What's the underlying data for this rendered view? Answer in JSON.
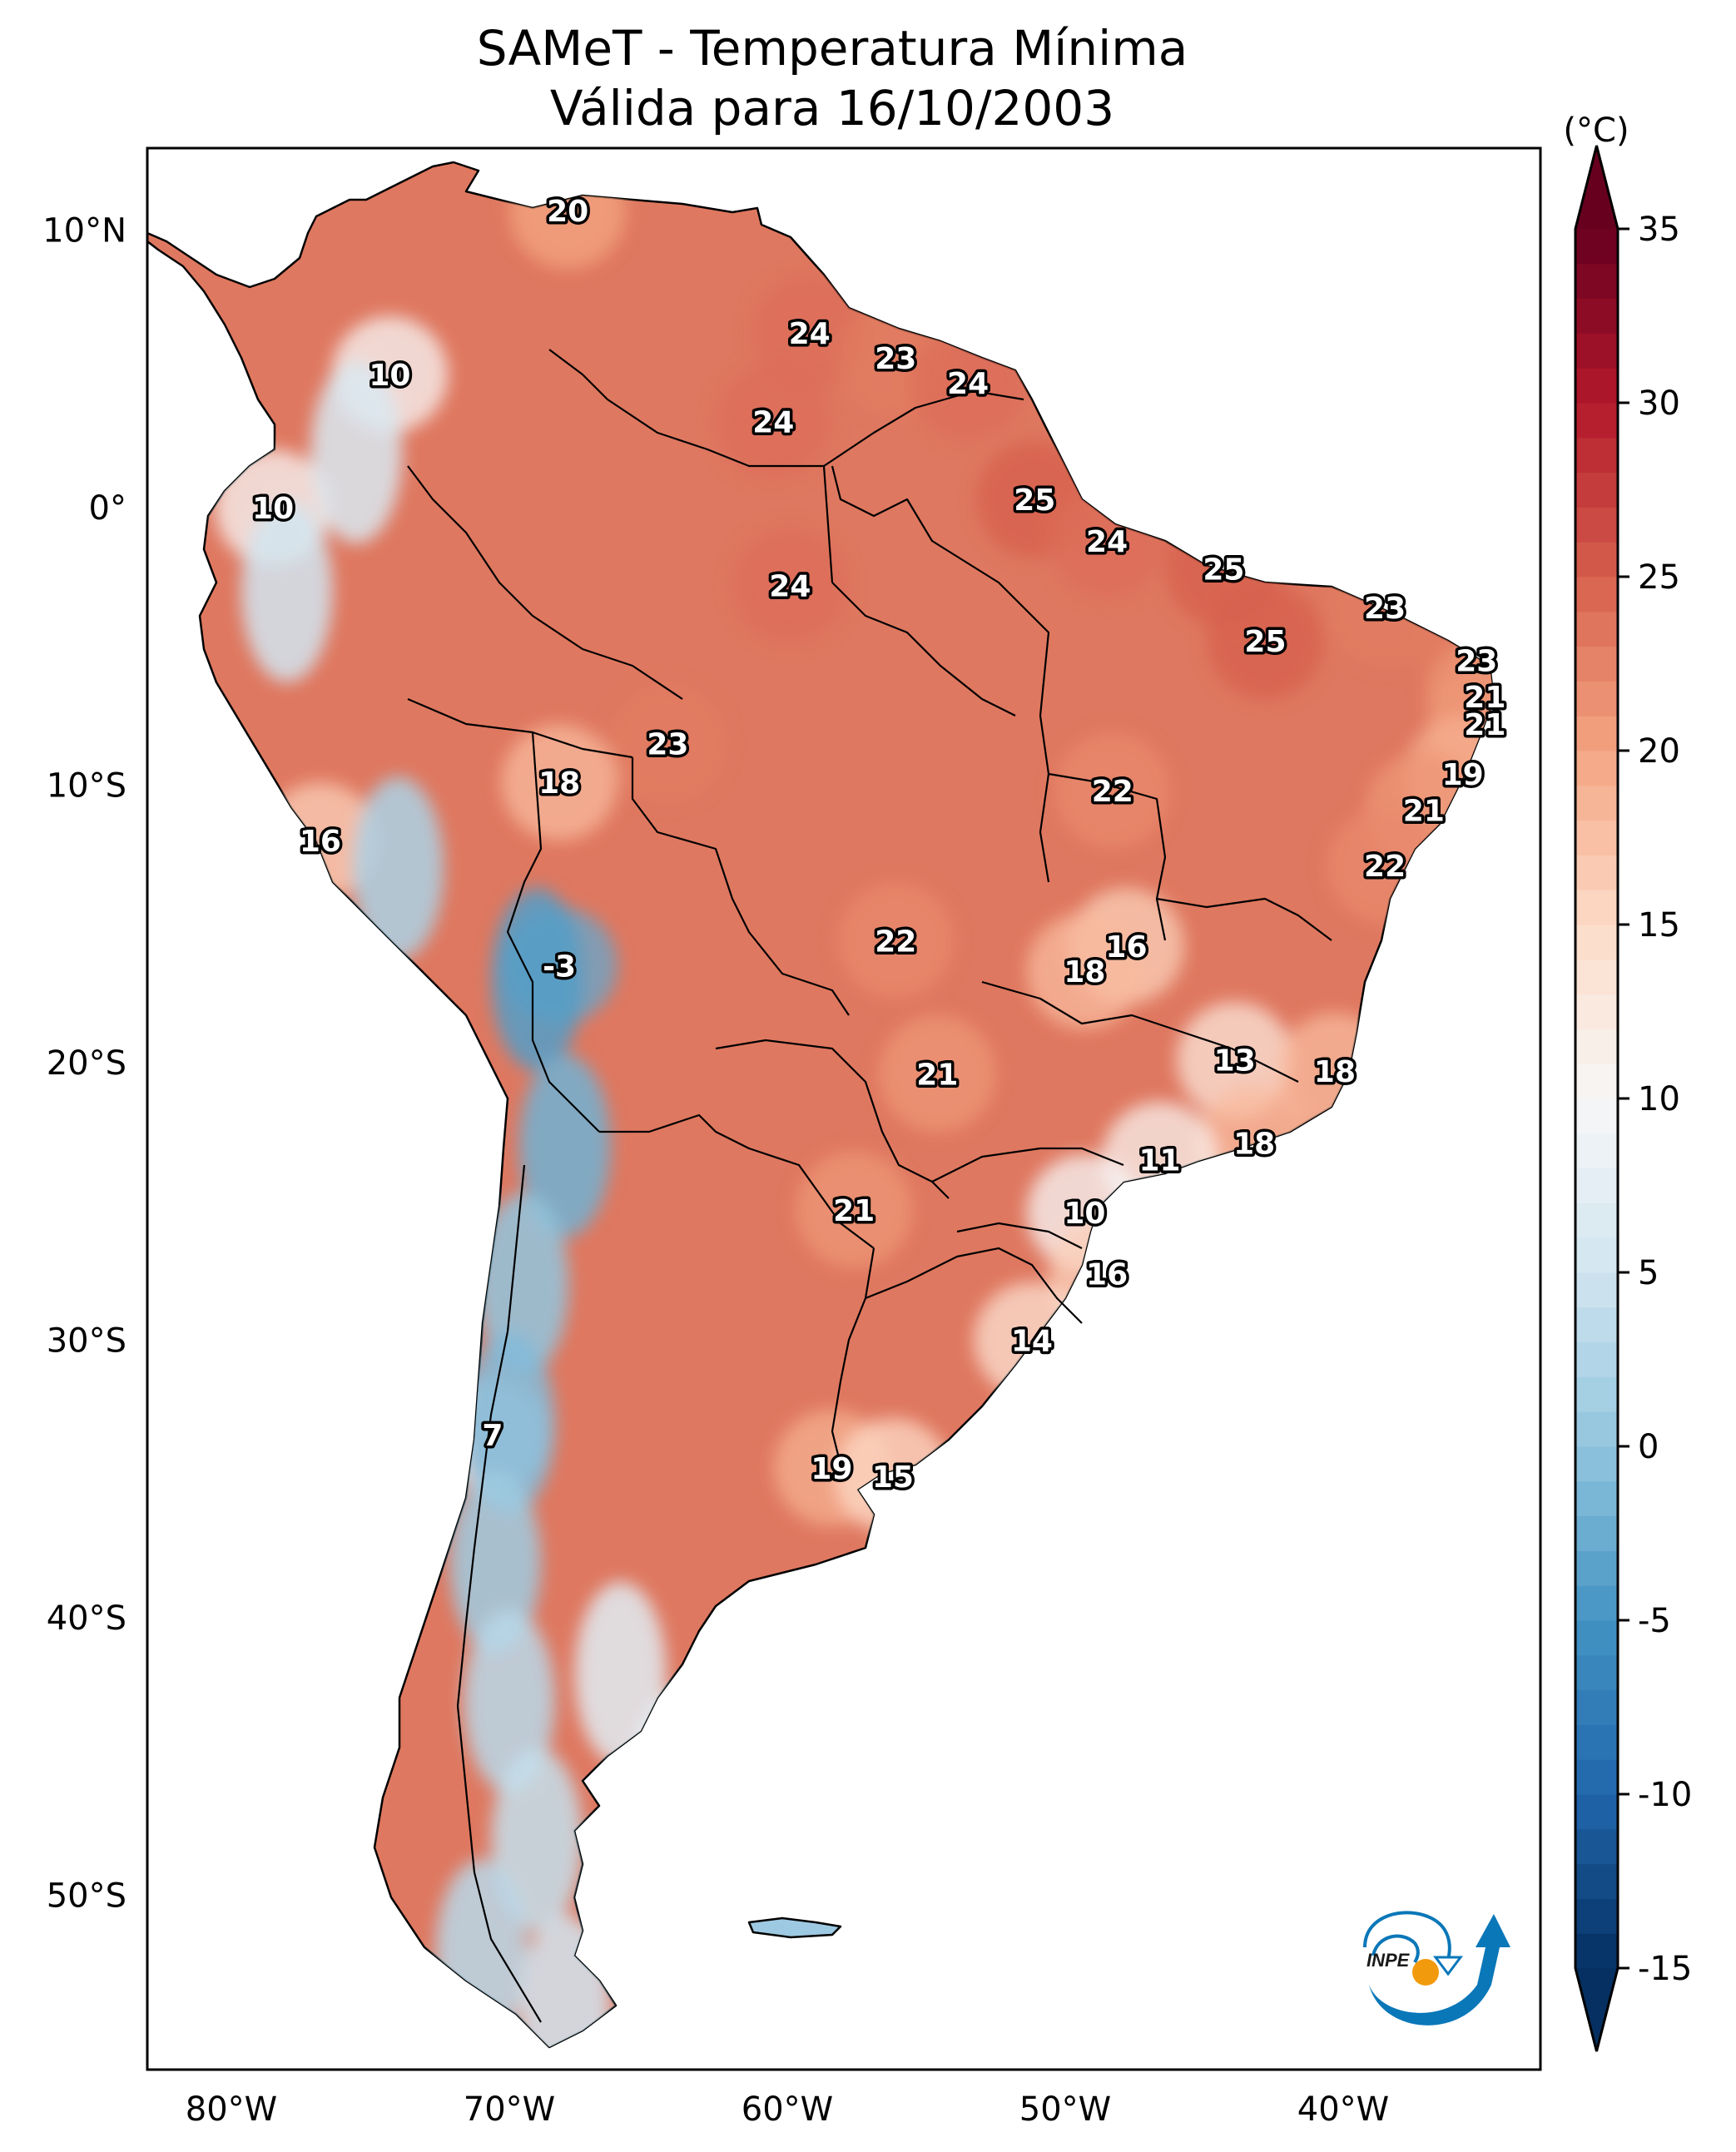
{
  "chart_data": {
    "type": "heatmap",
    "title": "SAMeT - Temperatura Mínima",
    "subtitle": "Válida para 16/10/2003",
    "projection": "PlateCarree",
    "extent_lon": [
      -83,
      -33
    ],
    "extent_lat": [
      -56,
      13
    ],
    "xticks": [
      {
        "value": -80,
        "label": "80°W"
      },
      {
        "value": -70,
        "label": "70°W"
      },
      {
        "value": -60,
        "label": "60°W"
      },
      {
        "value": -50,
        "label": "50°W"
      },
      {
        "value": -40,
        "label": "40°W"
      }
    ],
    "yticks": [
      {
        "value": 10,
        "label": "10°N"
      },
      {
        "value": 0,
        "label": "0°"
      },
      {
        "value": -10,
        "label": "10°S"
      },
      {
        "value": -20,
        "label": "20°S"
      },
      {
        "value": -30,
        "label": "30°S"
      },
      {
        "value": -40,
        "label": "40°S"
      },
      {
        "value": -50,
        "label": "50°S"
      }
    ],
    "colorbar": {
      "label": "(°C)",
      "range": [
        -15,
        35
      ],
      "extend": "both",
      "colormap": "RdBu_r",
      "ticks": [
        {
          "value": 35,
          "label": "35"
        },
        {
          "value": 30,
          "label": "30"
        },
        {
          "value": 25,
          "label": "25"
        },
        {
          "value": 20,
          "label": "20"
        },
        {
          "value": 15,
          "label": "15"
        },
        {
          "value": 10,
          "label": "10"
        },
        {
          "value": 5,
          "label": "5"
        },
        {
          "value": 0,
          "label": "0"
        },
        {
          "value": -5,
          "label": "-5"
        },
        {
          "value": -10,
          "label": "-10"
        },
        {
          "value": -15,
          "label": "-15"
        }
      ],
      "stops": [
        {
          "value": -15,
          "color": "#053061"
        },
        {
          "value": -10,
          "color": "#2166ac"
        },
        {
          "value": -5,
          "color": "#4393c3"
        },
        {
          "value": 0,
          "color": "#92c5de"
        },
        {
          "value": 5,
          "color": "#d1e5f0"
        },
        {
          "value": 10,
          "color": "#f7f7f7"
        },
        {
          "value": 15,
          "color": "#fddbc7"
        },
        {
          "value": 20,
          "color": "#f4a582"
        },
        {
          "value": 25,
          "color": "#d6604d"
        },
        {
          "value": 30,
          "color": "#b2182b"
        },
        {
          "value": 35,
          "color": "#67001f"
        }
      ]
    },
    "station_values": [
      {
        "lon": -67.9,
        "lat": 10.7,
        "value": 20
      },
      {
        "lon": -59.2,
        "lat": 6.3,
        "value": 24
      },
      {
        "lon": -56.1,
        "lat": 5.4,
        "value": 23
      },
      {
        "lon": -53.5,
        "lat": 4.5,
        "value": 24
      },
      {
        "lon": -74.3,
        "lat": 4.8,
        "value": 10
      },
      {
        "lon": -60.5,
        "lat": 3.1,
        "value": 24
      },
      {
        "lon": -78.5,
        "lat": 0.0,
        "value": 10
      },
      {
        "lon": -51.1,
        "lat": 0.3,
        "value": 25
      },
      {
        "lon": -48.5,
        "lat": -1.2,
        "value": 24
      },
      {
        "lon": -44.3,
        "lat": -2.2,
        "value": 25
      },
      {
        "lon": -59.9,
        "lat": -2.8,
        "value": 24
      },
      {
        "lon": -38.5,
        "lat": -3.6,
        "value": 23
      },
      {
        "lon": -42.8,
        "lat": -4.8,
        "value": 25
      },
      {
        "lon": -35.2,
        "lat": -5.5,
        "value": 23
      },
      {
        "lon": -34.9,
        "lat": -6.8,
        "value": 21
      },
      {
        "lon": -34.9,
        "lat": -7.8,
        "value": 21
      },
      {
        "lon": -64.3,
        "lat": -8.5,
        "value": 23
      },
      {
        "lon": -35.7,
        "lat": -9.6,
        "value": 19
      },
      {
        "lon": -68.2,
        "lat": -9.9,
        "value": 18
      },
      {
        "lon": -48.3,
        "lat": -10.2,
        "value": 22
      },
      {
        "lon": -37.1,
        "lat": -10.9,
        "value": 21
      },
      {
        "lon": -76.8,
        "lat": -12.0,
        "value": 16
      },
      {
        "lon": -38.5,
        "lat": -12.9,
        "value": 22
      },
      {
        "lon": -56.1,
        "lat": -15.6,
        "value": 22
      },
      {
        "lon": -47.8,
        "lat": -15.8,
        "value": 16
      },
      {
        "lon": -49.3,
        "lat": -16.7,
        "value": 18
      },
      {
        "lon": -68.2,
        "lat": -16.5,
        "value": -3
      },
      {
        "lon": -43.9,
        "lat": -19.9,
        "value": 13
      },
      {
        "lon": -54.6,
        "lat": -20.4,
        "value": 21
      },
      {
        "lon": -40.3,
        "lat": -20.3,
        "value": 18
      },
      {
        "lon": -43.2,
        "lat": -22.9,
        "value": 18
      },
      {
        "lon": -46.6,
        "lat": -23.5,
        "value": 11
      },
      {
        "lon": -57.6,
        "lat": -25.3,
        "value": 21
      },
      {
        "lon": -49.3,
        "lat": -25.4,
        "value": 10
      },
      {
        "lon": -48.5,
        "lat": -27.6,
        "value": 16
      },
      {
        "lon": -51.2,
        "lat": -30.0,
        "value": 14
      },
      {
        "lon": -70.6,
        "lat": -33.4,
        "value": 7
      },
      {
        "lon": -58.4,
        "lat": -34.6,
        "value": 19
      },
      {
        "lon": -56.2,
        "lat": -34.9,
        "value": 15
      }
    ]
  },
  "logo": {
    "text": "INPE",
    "arc_color": "#0a77b8",
    "sun_color": "#f29a0d"
  }
}
